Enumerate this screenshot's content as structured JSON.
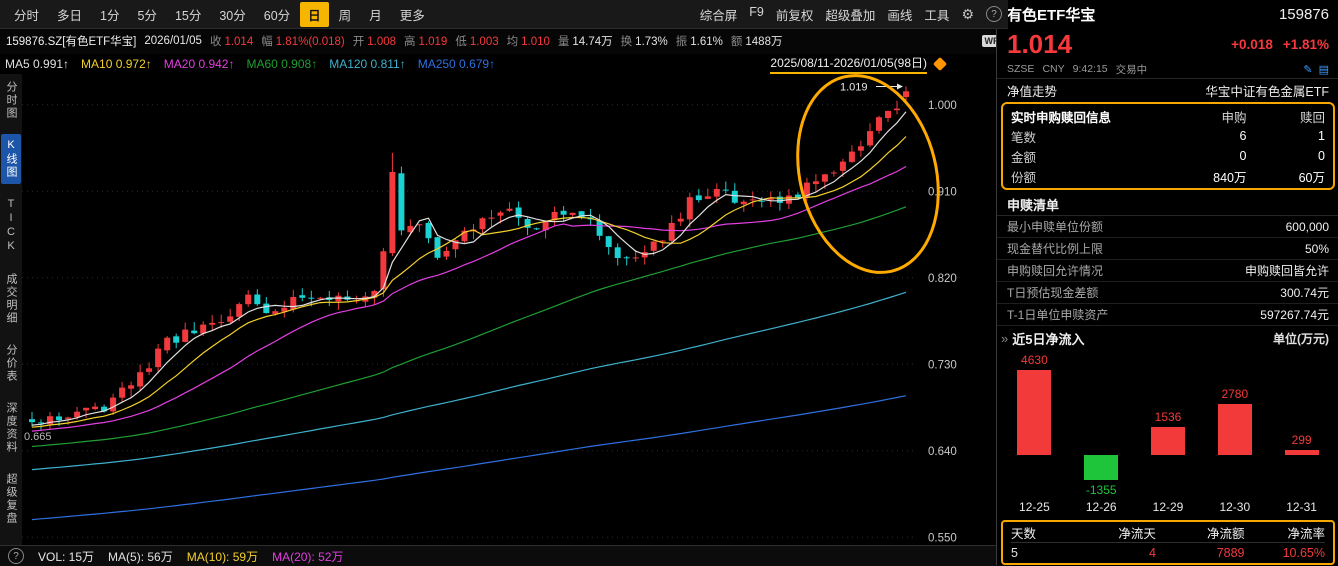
{
  "toolbar": {
    "periods": [
      "分时",
      "多日",
      "1分",
      "5分",
      "15分",
      "30分",
      "60分",
      "日",
      "周",
      "月",
      "更多"
    ],
    "selected_period": "日",
    "right_items": [
      "综合屏",
      "F9",
      "前复权",
      "超级叠加",
      "画线",
      "工具"
    ],
    "gear_icon": "⚙",
    "help_icon": "?"
  },
  "quote_bar": {
    "symbol": "159876.SZ[有色ETF华宝]",
    "date": "2026/01/05",
    "fields": [
      {
        "label": "收",
        "value": "1.014",
        "tone": "up"
      },
      {
        "label": "幅",
        "value": "1.81%(0.018)",
        "tone": "up"
      },
      {
        "label": "开",
        "value": "1.008",
        "tone": "up"
      },
      {
        "label": "高",
        "value": "1.019",
        "tone": "up"
      },
      {
        "label": "低",
        "value": "1.003",
        "tone": "up"
      },
      {
        "label": "均",
        "value": "1.010",
        "tone": "up"
      },
      {
        "label": "量",
        "value": "14.74万",
        "tone": "plain"
      },
      {
        "label": "换",
        "value": "1.73%",
        "tone": "plain"
      },
      {
        "label": "振",
        "value": "1.61%",
        "tone": "plain"
      },
      {
        "label": "额",
        "value": "1488万",
        "tone": "plain"
      }
    ],
    "wp_badge": "WP"
  },
  "ma_bar": {
    "items": [
      {
        "label": "MA5",
        "value": "0.991↑",
        "color": "#e0e0e0"
      },
      {
        "label": "MA10",
        "value": "0.972↑",
        "color": "#f2d02c"
      },
      {
        "label": "MA20",
        "value": "0.942↑",
        "color": "#e23fe2"
      },
      {
        "label": "MA60",
        "value": "0.908↑",
        "color": "#1f9e33"
      },
      {
        "label": "MA120",
        "value": "0.811↑",
        "color": "#3fb0cc"
      },
      {
        "label": "MA250",
        "value": "0.679↑",
        "color": "#2f6fe0"
      }
    ],
    "date_range": "2025/08/11-2026/01/05(98日)"
  },
  "sidebar": {
    "items": [
      {
        "label": "分时图",
        "selected": false
      },
      {
        "label": "K线图",
        "selected": true
      },
      {
        "label": "TICK",
        "selected": false
      },
      {
        "label": "成交明细",
        "selected": false
      },
      {
        "label": "分价表",
        "selected": false
      },
      {
        "label": "深度资料",
        "selected": false
      },
      {
        "label": "超级复盘",
        "selected": false
      }
    ]
  },
  "status_bar": {
    "help_icon": "?",
    "items": [
      {
        "label": "VOL: 15万",
        "color": "#e8e8e8"
      },
      {
        "label": "MA(5): 56万",
        "color": "#e0e0e0"
      },
      {
        "label": "MA(10): 59万",
        "color": "#f2d02c"
      },
      {
        "label": "MA(20): 52万",
        "color": "#e23fe2"
      }
    ]
  },
  "icons": {
    "chevron": "»",
    "edit": "✎",
    "grid": "▤"
  },
  "chart_data": [
    {
      "type": "candlestick",
      "symbol": "159876.SZ 有色ETF华宝",
      "period": "日",
      "date_range": "2025/08/11-2026/01/05",
      "days": 98,
      "ylim": [
        0.542,
        1.032
      ],
      "y_ticks": [
        1.0,
        0.91,
        0.82,
        0.73,
        0.64,
        0.55
      ],
      "high_marker": "1.019",
      "low_marker": "0.665",
      "prev_close": 0.996,
      "last": {
        "o": 1.008,
        "h": 1.019,
        "l": 1.003,
        "c": 1.014
      },
      "spike_day": 40,
      "seed": 11,
      "up_color": "#f23a3e",
      "down_color": "#1bd1d1",
      "highlight_color": "#ffaa00",
      "trend": [
        [
          0,
          0.668
        ],
        [
          4,
          0.676
        ],
        [
          8,
          0.686
        ],
        [
          12,
          0.718
        ],
        [
          15,
          0.756
        ],
        [
          18,
          0.763
        ],
        [
          21,
          0.773
        ],
        [
          24,
          0.801
        ],
        [
          26,
          0.783
        ],
        [
          29,
          0.797
        ],
        [
          32,
          0.805
        ],
        [
          35,
          0.793
        ],
        [
          38,
          0.812
        ],
        [
          39,
          0.845
        ],
        [
          40,
          0.93
        ],
        [
          41,
          0.872
        ],
        [
          43,
          0.881
        ],
        [
          45,
          0.843
        ],
        [
          47,
          0.863
        ],
        [
          50,
          0.877
        ],
        [
          53,
          0.887
        ],
        [
          56,
          0.873
        ],
        [
          58,
          0.893
        ],
        [
          61,
          0.887
        ],
        [
          63,
          0.865
        ],
        [
          65,
          0.839
        ],
        [
          67,
          0.847
        ],
        [
          70,
          0.863
        ],
        [
          73,
          0.899
        ],
        [
          76,
          0.911
        ],
        [
          79,
          0.895
        ],
        [
          82,
          0.897
        ],
        [
          85,
          0.907
        ],
        [
          88,
          0.925
        ],
        [
          90,
          0.939
        ],
        [
          92,
          0.957
        ],
        [
          94,
          0.985
        ],
        [
          95,
          0.997
        ],
        [
          96,
          0.996
        ],
        [
          97,
          1.014
        ]
      ],
      "ma_legend": {
        "MA5": 0.991,
        "MA10": 0.972,
        "MA20": 0.942,
        "MA60": 0.908,
        "MA120": 0.811,
        "MA250": 0.679
      }
    },
    {
      "type": "bar",
      "title": "近5日净流入",
      "unit": "单位(万元)",
      "categories": [
        "12-25",
        "12-26",
        "12-29",
        "12-30",
        "12-31"
      ],
      "values": [
        4630,
        -1355,
        1536,
        2780,
        299
      ],
      "up_color": "#f23a3a",
      "down_color": "#1ec43a"
    }
  ],
  "right_panel": {
    "name": "有色ETF华宝",
    "code": "159876",
    "price": "1.014",
    "change": "+0.018",
    "change_pct": "+1.81%",
    "exchange": "SZSE",
    "currency": "CNY",
    "time": "9:42:15",
    "status": "交易中",
    "nav_label": "净值走势",
    "fund_name": "华宝中证有色金属ETF",
    "realtime_box": {
      "title": "实时申购赎回信息",
      "col_headers": [
        "申购",
        "赎回"
      ],
      "rows": [
        {
          "label": "笔数",
          "subscribe": "6",
          "redeem": "1"
        },
        {
          "label": "金额",
          "subscribe": "0",
          "redeem": "0"
        },
        {
          "label": "份额",
          "subscribe": "840万",
          "redeem": "60万"
        }
      ]
    },
    "list_title": "申赎清单",
    "details": [
      {
        "label": "最小申赎单位份额",
        "value": "600,000"
      },
      {
        "label": "现金替代比例上限",
        "value": "50%"
      },
      {
        "label": "申购赎回允许情况",
        "value": "申购赎回皆允许"
      },
      {
        "label": "T日预估现金差额",
        "value": "300.74元"
      },
      {
        "label": "T-1日单位申赎资产",
        "value": "597267.74元"
      }
    ],
    "flow_title": "近5日净流入",
    "flow_unit": "单位(万元)",
    "stats": {
      "headers": [
        "天数",
        "净流天",
        "净流额",
        "净流率"
      ],
      "values": [
        {
          "text": "5",
          "tone": "plain"
        },
        {
          "text": "4",
          "tone": "up"
        },
        {
          "text": "7889",
          "tone": "up"
        },
        {
          "text": "10.65%",
          "tone": "up"
        }
      ]
    }
  },
  "colors": {
    "up": "#f5393d",
    "down": "#1bd1d1",
    "accent": "#f7b500",
    "highlight": "#ffaa00"
  }
}
